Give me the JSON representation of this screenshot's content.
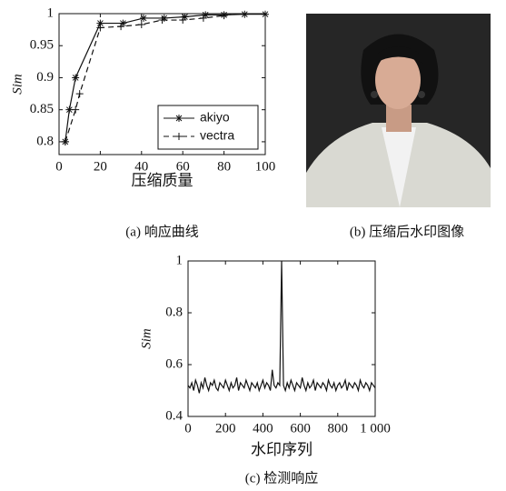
{
  "chart_data": [
    {
      "type": "line",
      "xlabel": "压缩质量",
      "ylabel": "Sim",
      "caption": "(a) 响应曲线",
      "xlim": [
        0,
        100
      ],
      "xticks": [
        0,
        20,
        40,
        60,
        80,
        100
      ],
      "ylim": [
        0.78,
        1
      ],
      "yticks": [
        0.8,
        0.85,
        0.9,
        0.95,
        1
      ],
      "legend": "lower right",
      "series": [
        {
          "name": "akiyo",
          "color": "#111111",
          "linestyle": "solid",
          "marker": "*",
          "x": [
            3,
            5,
            8,
            20,
            31,
            41,
            51,
            61,
            71,
            80,
            90,
            100
          ],
          "values": [
            0.8,
            0.85,
            0.9,
            0.985,
            0.985,
            0.993,
            0.993,
            0.995,
            0.998,
            0.998,
            0.999,
            0.999
          ]
        },
        {
          "name": "vectra",
          "color": "#111111",
          "linestyle": "dashed",
          "marker": "+",
          "x": [
            3,
            8,
            10,
            20,
            30,
            40,
            50,
            60,
            70,
            80
          ],
          "values": [
            0.8,
            0.85,
            0.875,
            0.978,
            0.98,
            0.983,
            0.99,
            0.99,
            0.993,
            0.997
          ]
        }
      ]
    },
    {
      "type": "line",
      "xlabel": "水印序列",
      "ylabel": "Sim",
      "caption": "(c) 检测响应",
      "xlim": [
        0,
        1000
      ],
      "xticks": [
        0,
        200,
        400,
        600,
        800,
        {
          "value": 1000,
          "label": "1 000"
        }
      ],
      "ylim": [
        0.4,
        1
      ],
      "yticks": [
        0.4,
        0.6,
        0.8,
        1
      ],
      "x": [
        0,
        10,
        20,
        30,
        40,
        50,
        60,
        70,
        80,
        90,
        100,
        110,
        120,
        130,
        140,
        150,
        160,
        170,
        180,
        190,
        200,
        210,
        220,
        230,
        240,
        250,
        260,
        270,
        280,
        290,
        300,
        310,
        320,
        330,
        340,
        350,
        360,
        370,
        380,
        390,
        400,
        410,
        420,
        430,
        440,
        450,
        460,
        470,
        480,
        490,
        500,
        510,
        520,
        530,
        540,
        550,
        560,
        570,
        580,
        590,
        600,
        610,
        620,
        630,
        640,
        650,
        660,
        670,
        680,
        690,
        700,
        710,
        720,
        730,
        740,
        750,
        760,
        770,
        780,
        790,
        800,
        810,
        820,
        830,
        840,
        850,
        860,
        870,
        880,
        890,
        900,
        910,
        920,
        930,
        940,
        950,
        960,
        970,
        980,
        990,
        1000
      ],
      "series": [
        {
          "color": "#111111",
          "linestyle": "solid",
          "marker": "none",
          "values": [
            0.52,
            0.51,
            0.53,
            0.5,
            0.54,
            0.52,
            0.49,
            0.53,
            0.51,
            0.55,
            0.52,
            0.5,
            0.53,
            0.52,
            0.54,
            0.51,
            0.5,
            0.53,
            0.52,
            0.51,
            0.54,
            0.52,
            0.5,
            0.53,
            0.51,
            0.52,
            0.55,
            0.5,
            0.53,
            0.52,
            0.51,
            0.54,
            0.52,
            0.5,
            0.53,
            0.52,
            0.51,
            0.53,
            0.5,
            0.52,
            0.54,
            0.51,
            0.53,
            0.52,
            0.5,
            0.58,
            0.52,
            0.51,
            0.53,
            0.52,
            1.0,
            0.52,
            0.5,
            0.53,
            0.51,
            0.54,
            0.52,
            0.5,
            0.53,
            0.52,
            0.51,
            0.55,
            0.52,
            0.5,
            0.53,
            0.51,
            0.52,
            0.54,
            0.5,
            0.53,
            0.52,
            0.51,
            0.53,
            0.52,
            0.5,
            0.54,
            0.52,
            0.51,
            0.53,
            0.5,
            0.52,
            0.53,
            0.51,
            0.52,
            0.54,
            0.5,
            0.53,
            0.52,
            0.51,
            0.53,
            0.52,
            0.5,
            0.54,
            0.52,
            0.51,
            0.53,
            0.52,
            0.5,
            0.53,
            0.52,
            0.51
          ]
        }
      ]
    }
  ],
  "figure_b": {
    "caption": "(b) 压缩后水印图像"
  }
}
